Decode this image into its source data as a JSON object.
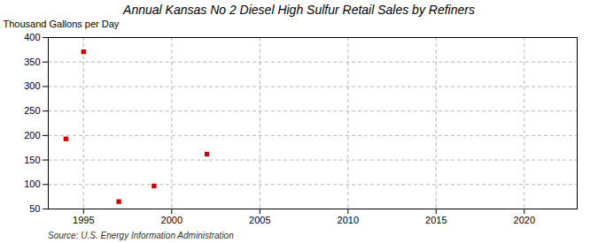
{
  "chart_data": {
    "type": "scatter",
    "title": "Annual Kansas No 2 Diesel High Sulfur Retail Sales by Refiners",
    "ylabel": "Thousand Gallons per Day",
    "source": "Source: U.S. Energy Information Administration",
    "x": [
      1994,
      1995,
      1997,
      1999,
      2002
    ],
    "values": [
      193,
      371,
      65,
      97,
      162
    ],
    "color": "#cc0000",
    "marker": "square",
    "xlim": [
      1993,
      2023
    ],
    "ylim": [
      50,
      400
    ],
    "xticks": [
      1995,
      2000,
      2005,
      2010,
      2015,
      2020
    ],
    "yticks": [
      50,
      100,
      150,
      200,
      250,
      300,
      350,
      400
    ],
    "grid": true
  }
}
